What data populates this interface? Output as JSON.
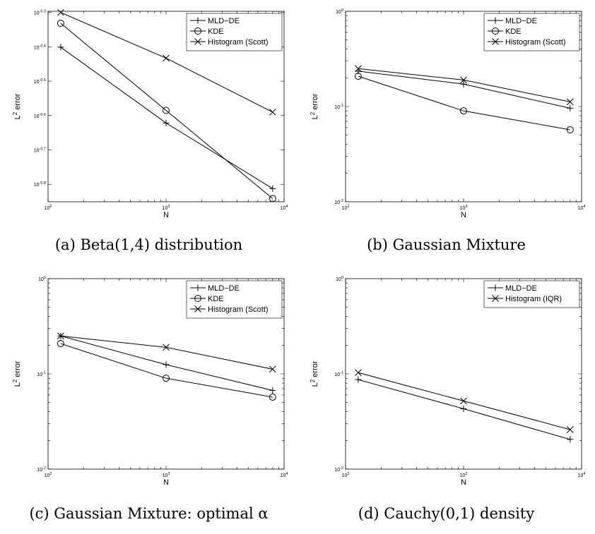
{
  "chart_data": [
    {
      "type": "line",
      "caption": "(a) Beta(1,4) distribution",
      "xlabel": "N",
      "ylabel": "L",
      "ylabel_superscript": "2",
      "ylabel_suffix": " error",
      "xscale": "log",
      "yscale": "log",
      "xlim": [
        100,
        10000
      ],
      "ylim": [
        0.141,
        0.505
      ],
      "xticks": [
        100,
        1000,
        10000
      ],
      "xticklabels": [
        {
          "base": "10",
          "exp": "2"
        },
        {
          "base": "10",
          "exp": "3"
        },
        {
          "base": "10",
          "exp": "4"
        }
      ],
      "yticks": [
        0.1585,
        0.1995,
        0.2512,
        0.3162,
        0.3981,
        0.5012
      ],
      "yticklabels": [
        {
          "base": "10",
          "exp": "-0.8"
        },
        {
          "base": "10",
          "exp": "-0.7"
        },
        {
          "base": "10",
          "exp": "-0.6"
        },
        {
          "base": "10",
          "exp": "-0.5"
        },
        {
          "base": "10",
          "exp": "-0.4"
        },
        {
          "base": "10",
          "exp": "-0.3"
        }
      ],
      "legend_position": "top-right",
      "grid": false,
      "series": [
        {
          "name": "MLD−DE",
          "marker": "plus",
          "x": [
            128,
            1000,
            8000
          ],
          "y": [
            0.397,
            0.239,
            0.154
          ]
        },
        {
          "name": "KDE",
          "marker": "circle",
          "x": [
            128,
            1000,
            8000
          ],
          "y": [
            0.466,
            0.26,
            0.144
          ]
        },
        {
          "name": "Histogram (Scott)",
          "marker": "x",
          "x": [
            128,
            1000,
            8000
          ],
          "y": [
            0.501,
            0.369,
            0.257
          ]
        }
      ]
    },
    {
      "type": "line",
      "caption": "(b) Gaussian Mixture",
      "xlabel": "N",
      "ylabel": "L",
      "ylabel_superscript": "2",
      "ylabel_suffix": " error",
      "xscale": "log",
      "yscale": "log",
      "xlim": [
        100,
        10000
      ],
      "ylim": [
        0.01,
        1
      ],
      "xticks": [
        100,
        1000,
        10000
      ],
      "xticklabels": [
        {
          "base": "10",
          "exp": "2"
        },
        {
          "base": "10",
          "exp": "3"
        },
        {
          "base": "10",
          "exp": "4"
        }
      ],
      "yticks": [
        0.01,
        0.1,
        1
      ],
      "yticklabels": [
        {
          "base": "10",
          "exp": "-2"
        },
        {
          "base": "10",
          "exp": "-1"
        },
        {
          "base": "10",
          "exp": "0"
        }
      ],
      "legend_position": "top-right",
      "grid": false,
      "series": [
        {
          "name": "MLD−DE",
          "marker": "plus",
          "x": [
            128,
            1000,
            8000
          ],
          "y": [
            0.235,
            0.172,
            0.096
          ]
        },
        {
          "name": "KDE",
          "marker": "circle",
          "x": [
            128,
            1000,
            8000
          ],
          "y": [
            0.208,
            0.09,
            0.057
          ]
        },
        {
          "name": "Histogram (Scott)",
          "marker": "x",
          "x": [
            128,
            1000,
            8000
          ],
          "y": [
            0.25,
            0.19,
            0.112
          ]
        }
      ]
    },
    {
      "type": "line",
      "caption": "(c) Gaussian Mixture: optimal α",
      "xlabel": "N",
      "ylabel": "L",
      "ylabel_superscript": "2",
      "ylabel_suffix": " error",
      "xscale": "log",
      "yscale": "log",
      "xlim": [
        100,
        10000
      ],
      "ylim": [
        0.01,
        1
      ],
      "xticks": [
        100,
        1000,
        10000
      ],
      "xticklabels": [
        {
          "base": "10",
          "exp": "2"
        },
        {
          "base": "10",
          "exp": "3"
        },
        {
          "base": "10",
          "exp": "4"
        }
      ],
      "yticks": [
        0.01,
        0.1,
        1
      ],
      "yticklabels": [
        {
          "base": "10",
          "exp": "-2"
        },
        {
          "base": "10",
          "exp": "-1"
        },
        {
          "base": "10",
          "exp": "0"
        }
      ],
      "legend_position": "top-right",
      "grid": false,
      "series": [
        {
          "name": "MLD−DE",
          "marker": "plus",
          "x": [
            128,
            1000,
            8000
          ],
          "y": [
            0.25,
            0.125,
            0.067
          ]
        },
        {
          "name": "KDE",
          "marker": "circle",
          "x": [
            128,
            1000,
            8000
          ],
          "y": [
            0.208,
            0.09,
            0.057
          ]
        },
        {
          "name": "Histogram (Scott)",
          "marker": "x",
          "x": [
            128,
            1000,
            8000
          ],
          "y": [
            0.25,
            0.19,
            0.112
          ]
        }
      ]
    },
    {
      "type": "line",
      "caption": "(d) Cauchy(0,1) density",
      "xlabel": "N",
      "ylabel": "L",
      "ylabel_superscript": "2",
      "ylabel_suffix": " error",
      "xscale": "log",
      "yscale": "log",
      "xlim": [
        100,
        10000
      ],
      "ylim": [
        0.01,
        1
      ],
      "xticks": [
        100,
        1000,
        10000
      ],
      "xticklabels": [
        {
          "base": "10",
          "exp": "2"
        },
        {
          "base": "10",
          "exp": "3"
        },
        {
          "base": "10",
          "exp": "4"
        }
      ],
      "yticks": [
        0.01,
        0.1,
        1
      ],
      "yticklabels": [
        {
          "base": "10",
          "exp": "-2"
        },
        {
          "base": "10",
          "exp": "-1"
        },
        {
          "base": "10",
          "exp": "0"
        }
      ],
      "legend_position": "top-right",
      "grid": false,
      "series": [
        {
          "name": "MLD−DE",
          "marker": "plus",
          "x": [
            128,
            1000,
            8000
          ],
          "y": [
            0.087,
            0.043,
            0.0205
          ]
        },
        {
          "name": "Histogram (IQR)",
          "marker": "x",
          "x": [
            128,
            1000,
            8000
          ],
          "y": [
            0.103,
            0.052,
            0.026
          ]
        }
      ]
    }
  ]
}
